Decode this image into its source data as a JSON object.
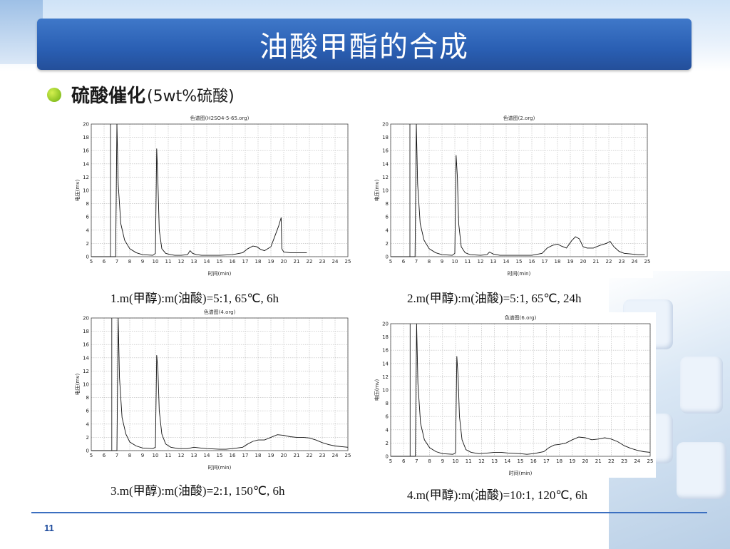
{
  "slide": {
    "title": "油酸甲酯的合成",
    "bullet_main": "硫酸催化",
    "bullet_sub": "(5wt%硫酸)",
    "page_number": "11"
  },
  "chart_data": [
    {
      "type": "line",
      "title": "色谱图(H2SO4-5-65.org)",
      "xlabel": "时间(min)",
      "ylabel": "电压(mv)",
      "xlim": [
        5,
        25
      ],
      "ylim": [
        0,
        20
      ],
      "xticks": [
        5,
        6,
        7,
        8,
        9,
        10,
        11,
        12,
        13,
        14,
        15,
        16,
        17,
        18,
        19,
        20,
        21,
        22,
        23,
        24,
        25
      ],
      "yticks": [
        0,
        2,
        4,
        6,
        8,
        10,
        12,
        14,
        16,
        18,
        20
      ],
      "grid": true,
      "caption": "1.m(甲醇):m(油酸)=5:1, 65℃, 6h",
      "series": [
        {
          "x": [
            5.0,
            6.5,
            6.5,
            6.9,
            7.0,
            7.1,
            7.3,
            7.6,
            8.0,
            8.5,
            9.0,
            9.8,
            10.0,
            10.1,
            10.2,
            10.3,
            10.5,
            10.8,
            11.2,
            11.5,
            12.0,
            12.5,
            12.7,
            12.9,
            13.2,
            13.6,
            14.0,
            15.0,
            16.0,
            16.8,
            17.2,
            17.6,
            17.9,
            18.2,
            18.5,
            19.0,
            19.6,
            19.8,
            19.85,
            20.0,
            20.5,
            21.0,
            21.5,
            21.8
          ],
          "y": [
            0,
            0,
            0,
            0,
            20,
            11,
            5,
            2.5,
            1.2,
            0.6,
            0.3,
            0.2,
            0.5,
            16.3,
            11,
            4,
            1.2,
            0.5,
            0.3,
            0.2,
            0.2,
            0.3,
            0.9,
            0.5,
            0.3,
            0.2,
            0.2,
            0.2,
            0.3,
            0.6,
            1.2,
            1.6,
            1.5,
            1.1,
            0.9,
            1.5,
            4.6,
            5.9,
            1.2,
            0.7,
            0.6,
            0.6,
            0.6,
            0.6
          ]
        }
      ],
      "vlines": [
        6.5
      ]
    },
    {
      "type": "line",
      "title": "色谱图(2.org)",
      "xlabel": "时间(min)",
      "ylabel": "电压(mv)",
      "xlim": [
        5,
        25
      ],
      "ylim": [
        0,
        20
      ],
      "xticks": [
        5,
        6,
        7,
        8,
        9,
        10,
        11,
        12,
        13,
        14,
        15,
        16,
        17,
        18,
        19,
        20,
        21,
        22,
        23,
        24,
        25
      ],
      "yticks": [
        0,
        2,
        4,
        6,
        8,
        10,
        12,
        14,
        16,
        18,
        20
      ],
      "grid": true,
      "caption": "2.m(甲醇):m(油酸)=5:1, 65℃, 24h",
      "series": [
        {
          "x": [
            5.0,
            6.5,
            6.5,
            6.9,
            7.0,
            7.1,
            7.3,
            7.6,
            8.0,
            8.5,
            9.0,
            9.8,
            10.0,
            10.1,
            10.2,
            10.3,
            10.5,
            10.8,
            11.2,
            12.0,
            12.5,
            12.7,
            13.0,
            13.5,
            14.0,
            15.0,
            16.0,
            16.8,
            17.2,
            17.6,
            18.0,
            18.3,
            18.7,
            19.1,
            19.4,
            19.7,
            20.0,
            20.3,
            20.8,
            21.3,
            21.8,
            22.1,
            22.4,
            22.8,
            23.2,
            23.8,
            24.3,
            24.8
          ],
          "y": [
            0,
            0,
            0,
            0,
            20,
            11,
            5,
            2.5,
            1.2,
            0.6,
            0.3,
            0.2,
            0.5,
            15.3,
            12,
            5,
            1.5,
            0.6,
            0.3,
            0.2,
            0.3,
            0.7,
            0.4,
            0.2,
            0.2,
            0.2,
            0.2,
            0.5,
            1.3,
            1.7,
            1.9,
            1.6,
            1.3,
            2.4,
            3.0,
            2.7,
            1.5,
            1.3,
            1.3,
            1.7,
            2.0,
            2.3,
            1.5,
            0.8,
            0.5,
            0.4,
            0.3,
            0.3
          ]
        }
      ],
      "vlines": [
        6.5
      ]
    },
    {
      "type": "line",
      "title": "色谱图(4.org)",
      "xlabel": "时间(min)",
      "ylabel": "电压(mv)",
      "xlim": [
        5,
        25
      ],
      "ylim": [
        0,
        20
      ],
      "xticks": [
        5,
        6,
        7,
        8,
        9,
        10,
        11,
        12,
        13,
        14,
        15,
        16,
        17,
        18,
        19,
        20,
        21,
        22,
        23,
        24,
        25
      ],
      "yticks": [
        0,
        2,
        4,
        6,
        8,
        10,
        12,
        14,
        16,
        18,
        20
      ],
      "grid": true,
      "caption": "3.m(甲醇):m(油酸)=2:1, 150℃, 6h",
      "series": [
        {
          "x": [
            5.0,
            6.6,
            6.6,
            7.0,
            7.1,
            7.2,
            7.4,
            7.7,
            8.0,
            8.5,
            9.0,
            9.8,
            10.0,
            10.1,
            10.2,
            10.3,
            10.5,
            10.8,
            11.2,
            11.8,
            12.5,
            13.0,
            13.5,
            14.0,
            15.0,
            15.5,
            16.0,
            16.8,
            17.2,
            17.6,
            18.0,
            18.5,
            19.0,
            19.5,
            20.0,
            20.5,
            21.0,
            21.5,
            22.0,
            22.5,
            23.0,
            23.5,
            24.0,
            24.5,
            25.0
          ],
          "y": [
            0,
            0,
            0,
            0,
            20,
            11,
            5,
            2.5,
            1.3,
            0.7,
            0.4,
            0.3,
            0.5,
            14.4,
            12,
            6,
            2.5,
            1.0,
            0.5,
            0.3,
            0.3,
            0.5,
            0.4,
            0.3,
            0.2,
            0.2,
            0.3,
            0.5,
            1.0,
            1.4,
            1.6,
            1.6,
            2.0,
            2.4,
            2.3,
            2.1,
            2.0,
            2.0,
            1.9,
            1.6,
            1.2,
            0.9,
            0.7,
            0.6,
            0.5
          ]
        }
      ],
      "vlines": [
        6.6
      ]
    },
    {
      "type": "line",
      "title": "色谱图(6.org)",
      "xlabel": "时间(min)",
      "ylabel": "电压(mv)",
      "xlim": [
        5,
        25
      ],
      "ylim": [
        0,
        20
      ],
      "xticks": [
        5,
        6,
        7,
        8,
        9,
        10,
        11,
        12,
        13,
        14,
        15,
        16,
        17,
        18,
        19,
        20,
        21,
        22,
        23,
        24,
        25
      ],
      "yticks": [
        0,
        2,
        4,
        6,
        8,
        10,
        12,
        14,
        16,
        18,
        20
      ],
      "grid": true,
      "caption": "4.m(甲醇):m(油酸)=10:1, 120℃, 6h",
      "series": [
        {
          "x": [
            5.0,
            6.5,
            6.5,
            6.9,
            7.0,
            7.1,
            7.3,
            7.6,
            8.0,
            8.5,
            9.0,
            9.8,
            10.0,
            10.1,
            10.2,
            10.3,
            10.5,
            10.8,
            11.2,
            11.8,
            12.5,
            13.0,
            13.5,
            14.0,
            15.0,
            15.5,
            16.0,
            16.8,
            17.2,
            17.6,
            18.0,
            18.5,
            19.0,
            19.5,
            20.0,
            20.5,
            21.0,
            21.5,
            22.0,
            22.5,
            23.0,
            23.5,
            24.0,
            24.5,
            25.0
          ],
          "y": [
            0,
            0,
            0,
            0,
            20,
            11,
            5,
            2.5,
            1.3,
            0.7,
            0.4,
            0.3,
            0.5,
            15.1,
            12,
            6,
            2.5,
            1.0,
            0.6,
            0.4,
            0.5,
            0.6,
            0.6,
            0.5,
            0.4,
            0.3,
            0.4,
            0.7,
            1.3,
            1.7,
            1.8,
            2.0,
            2.5,
            2.9,
            2.8,
            2.5,
            2.6,
            2.8,
            2.6,
            2.2,
            1.6,
            1.2,
            0.9,
            0.7,
            0.6
          ]
        }
      ],
      "vlines": [
        6.5
      ]
    }
  ]
}
